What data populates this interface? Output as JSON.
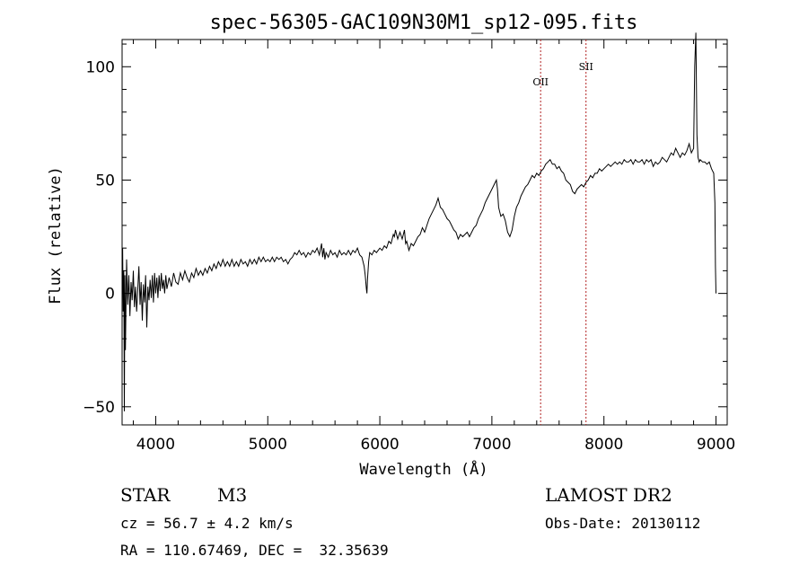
{
  "chart_data": {
    "type": "line",
    "title": "spec-56305-GAC109N30M1_sp12-095.fits",
    "xlabel": "Wavelength (Å)",
    "ylabel": "Flux (relative)",
    "xlim": [
      3700,
      9100
    ],
    "ylim": [
      -58,
      112
    ],
    "x_ticks": [
      4000,
      5000,
      6000,
      7000,
      8000,
      9000
    ],
    "y_ticks": [
      -50,
      0,
      50,
      100
    ],
    "grid": false,
    "reference_lines": [
      {
        "name": "OII",
        "x": 7435
      },
      {
        "name": "SII",
        "x": 7840
      }
    ],
    "series": [
      {
        "points": [
          [
            3700,
            5
          ],
          [
            3705,
            20
          ],
          [
            3710,
            -8
          ],
          [
            3715,
            10
          ],
          [
            3720,
            -52
          ],
          [
            3725,
            8
          ],
          [
            3730,
            -25
          ],
          [
            3740,
            15
          ],
          [
            3750,
            -5
          ],
          [
            3760,
            8
          ],
          [
            3770,
            -10
          ],
          [
            3780,
            5
          ],
          [
            3790,
            -3
          ],
          [
            3800,
            10
          ],
          [
            3810,
            -6
          ],
          [
            3820,
            3
          ],
          [
            3830,
            -8
          ],
          [
            3840,
            2
          ],
          [
            3850,
            12
          ],
          [
            3860,
            -5
          ],
          [
            3870,
            5
          ],
          [
            3880,
            -12
          ],
          [
            3890,
            4
          ],
          [
            3900,
            -4
          ],
          [
            3910,
            8
          ],
          [
            3920,
            -15
          ],
          [
            3930,
            3
          ],
          [
            3940,
            -3
          ],
          [
            3950,
            6
          ],
          [
            3960,
            -2
          ],
          [
            3970,
            8
          ],
          [
            3980,
            -4
          ],
          [
            3990,
            9
          ],
          [
            4000,
            0
          ],
          [
            4010,
            7
          ],
          [
            4020,
            -2
          ],
          [
            4030,
            8
          ],
          [
            4040,
            1
          ],
          [
            4050,
            9
          ],
          [
            4060,
            2
          ],
          [
            4070,
            6
          ],
          [
            4080,
            0
          ],
          [
            4090,
            8
          ],
          [
            4100,
            2
          ],
          [
            4120,
            7
          ],
          [
            4140,
            3
          ],
          [
            4160,
            9
          ],
          [
            4180,
            5
          ],
          [
            4200,
            4
          ],
          [
            4220,
            9
          ],
          [
            4240,
            6
          ],
          [
            4260,
            10
          ],
          [
            4280,
            7
          ],
          [
            4300,
            5
          ],
          [
            4320,
            9
          ],
          [
            4340,
            7
          ],
          [
            4360,
            11
          ],
          [
            4380,
            8
          ],
          [
            4400,
            10
          ],
          [
            4420,
            8
          ],
          [
            4440,
            11
          ],
          [
            4460,
            9
          ],
          [
            4480,
            12
          ],
          [
            4500,
            10
          ],
          [
            4520,
            13
          ],
          [
            4540,
            11
          ],
          [
            4560,
            14
          ],
          [
            4580,
            12
          ],
          [
            4600,
            15
          ],
          [
            4620,
            12
          ],
          [
            4640,
            14
          ],
          [
            4660,
            12
          ],
          [
            4680,
            15
          ],
          [
            4700,
            12
          ],
          [
            4720,
            14
          ],
          [
            4740,
            12
          ],
          [
            4760,
            15
          ],
          [
            4780,
            13
          ],
          [
            4800,
            14
          ],
          [
            4820,
            12
          ],
          [
            4840,
            15
          ],
          [
            4860,
            13
          ],
          [
            4880,
            15
          ],
          [
            4900,
            13
          ],
          [
            4920,
            16
          ],
          [
            4940,
            14
          ],
          [
            4960,
            16
          ],
          [
            4980,
            14
          ],
          [
            5000,
            15
          ],
          [
            5020,
            14
          ],
          [
            5040,
            16
          ],
          [
            5060,
            14
          ],
          [
            5080,
            16
          ],
          [
            5100,
            15
          ],
          [
            5120,
            16
          ],
          [
            5140,
            14
          ],
          [
            5160,
            15
          ],
          [
            5180,
            13
          ],
          [
            5200,
            15
          ],
          [
            5220,
            16
          ],
          [
            5240,
            18
          ],
          [
            5260,
            17
          ],
          [
            5280,
            19
          ],
          [
            5300,
            17
          ],
          [
            5320,
            18
          ],
          [
            5340,
            16
          ],
          [
            5360,
            18
          ],
          [
            5380,
            17
          ],
          [
            5400,
            19
          ],
          [
            5420,
            18
          ],
          [
            5440,
            20
          ],
          [
            5460,
            17
          ],
          [
            5480,
            22
          ],
          [
            5490,
            16
          ],
          [
            5500,
            20
          ],
          [
            5510,
            15
          ],
          [
            5520,
            18
          ],
          [
            5540,
            16
          ],
          [
            5560,
            19
          ],
          [
            5580,
            17
          ],
          [
            5600,
            18
          ],
          [
            5620,
            16
          ],
          [
            5640,
            19
          ],
          [
            5660,
            17
          ],
          [
            5680,
            18
          ],
          [
            5700,
            17
          ],
          [
            5720,
            19
          ],
          [
            5740,
            17
          ],
          [
            5760,
            19
          ],
          [
            5780,
            18
          ],
          [
            5800,
            20
          ],
          [
            5820,
            17
          ],
          [
            5840,
            16
          ],
          [
            5860,
            12
          ],
          [
            5870,
            8
          ],
          [
            5880,
            2
          ],
          [
            5885,
            0
          ],
          [
            5890,
            6
          ],
          [
            5900,
            14
          ],
          [
            5910,
            18
          ],
          [
            5930,
            17
          ],
          [
            5950,
            19
          ],
          [
            5970,
            18
          ],
          [
            6000,
            20
          ],
          [
            6020,
            19
          ],
          [
            6040,
            21
          ],
          [
            6060,
            20
          ],
          [
            6080,
            23
          ],
          [
            6100,
            22
          ],
          [
            6120,
            26
          ],
          [
            6130,
            25
          ],
          [
            6140,
            28
          ],
          [
            6160,
            24
          ],
          [
            6180,
            27
          ],
          [
            6200,
            24
          ],
          [
            6220,
            28
          ],
          [
            6230,
            22
          ],
          [
            6240,
            23
          ],
          [
            6260,
            19
          ],
          [
            6280,
            22
          ],
          [
            6300,
            21
          ],
          [
            6320,
            23
          ],
          [
            6340,
            25
          ],
          [
            6360,
            26
          ],
          [
            6380,
            29
          ],
          [
            6400,
            27
          ],
          [
            6420,
            30
          ],
          [
            6440,
            33
          ],
          [
            6460,
            35
          ],
          [
            6480,
            37
          ],
          [
            6500,
            39
          ],
          [
            6520,
            42
          ],
          [
            6540,
            38
          ],
          [
            6560,
            37
          ],
          [
            6580,
            35
          ],
          [
            6600,
            33
          ],
          [
            6620,
            32
          ],
          [
            6640,
            30
          ],
          [
            6660,
            28
          ],
          [
            6680,
            27
          ],
          [
            6700,
            24
          ],
          [
            6720,
            26
          ],
          [
            6740,
            25
          ],
          [
            6760,
            26
          ],
          [
            6780,
            27
          ],
          [
            6800,
            25
          ],
          [
            6820,
            27
          ],
          [
            6840,
            29
          ],
          [
            6860,
            30
          ],
          [
            6880,
            33
          ],
          [
            6900,
            35
          ],
          [
            6920,
            37
          ],
          [
            6940,
            40
          ],
          [
            6960,
            42
          ],
          [
            6980,
            44
          ],
          [
            7000,
            46
          ],
          [
            7020,
            48
          ],
          [
            7040,
            50
          ],
          [
            7050,
            46
          ],
          [
            7060,
            38
          ],
          [
            7070,
            36
          ],
          [
            7080,
            34
          ],
          [
            7100,
            35
          ],
          [
            7120,
            32
          ],
          [
            7140,
            27
          ],
          [
            7160,
            25
          ],
          [
            7180,
            28
          ],
          [
            7200,
            34
          ],
          [
            7220,
            38
          ],
          [
            7240,
            40
          ],
          [
            7260,
            43
          ],
          [
            7280,
            45
          ],
          [
            7300,
            47
          ],
          [
            7320,
            48
          ],
          [
            7340,
            50
          ],
          [
            7360,
            52
          ],
          [
            7380,
            51
          ],
          [
            7400,
            53
          ],
          [
            7420,
            52
          ],
          [
            7440,
            54
          ],
          [
            7460,
            55
          ],
          [
            7480,
            57
          ],
          [
            7500,
            58
          ],
          [
            7520,
            59
          ],
          [
            7540,
            57
          ],
          [
            7560,
            57
          ],
          [
            7580,
            55
          ],
          [
            7600,
            56
          ],
          [
            7620,
            54
          ],
          [
            7640,
            53
          ],
          [
            7660,
            50
          ],
          [
            7680,
            49
          ],
          [
            7700,
            48
          ],
          [
            7720,
            45
          ],
          [
            7740,
            44
          ],
          [
            7760,
            46
          ],
          [
            7780,
            47
          ],
          [
            7800,
            48
          ],
          [
            7820,
            47
          ],
          [
            7840,
            49
          ],
          [
            7860,
            50
          ],
          [
            7880,
            52
          ],
          [
            7900,
            51
          ],
          [
            7920,
            53
          ],
          [
            7940,
            53
          ],
          [
            7960,
            55
          ],
          [
            7980,
            54
          ],
          [
            8000,
            55
          ],
          [
            8020,
            56
          ],
          [
            8040,
            57
          ],
          [
            8060,
            56
          ],
          [
            8080,
            57
          ],
          [
            8100,
            58
          ],
          [
            8120,
            57
          ],
          [
            8140,
            58
          ],
          [
            8160,
            57
          ],
          [
            8180,
            59
          ],
          [
            8200,
            58
          ],
          [
            8220,
            58
          ],
          [
            8240,
            59
          ],
          [
            8260,
            57
          ],
          [
            8280,
            59
          ],
          [
            8300,
            58
          ],
          [
            8320,
            58
          ],
          [
            8340,
            59
          ],
          [
            8360,
            57
          ],
          [
            8380,
            59
          ],
          [
            8400,
            58
          ],
          [
            8420,
            59
          ],
          [
            8440,
            56
          ],
          [
            8460,
            58
          ],
          [
            8480,
            57
          ],
          [
            8500,
            58
          ],
          [
            8520,
            60
          ],
          [
            8540,
            59
          ],
          [
            8560,
            58
          ],
          [
            8580,
            60
          ],
          [
            8600,
            62
          ],
          [
            8620,
            61
          ],
          [
            8640,
            64
          ],
          [
            8660,
            62
          ],
          [
            8680,
            60
          ],
          [
            8700,
            62
          ],
          [
            8720,
            61
          ],
          [
            8740,
            63
          ],
          [
            8760,
            66
          ],
          [
            8780,
            62
          ],
          [
            8800,
            64
          ],
          [
            8810,
            100
          ],
          [
            8820,
            115
          ],
          [
            8830,
            70
          ],
          [
            8840,
            60
          ],
          [
            8850,
            58
          ],
          [
            8860,
            59
          ],
          [
            8880,
            58
          ],
          [
            8900,
            58
          ],
          [
            8920,
            57
          ],
          [
            8940,
            58
          ],
          [
            8960,
            55
          ],
          [
            8980,
            53
          ],
          [
            8990,
            40
          ],
          [
            8995,
            12
          ],
          [
            9000,
            0
          ]
        ]
      }
    ]
  },
  "info": {
    "object_class": "STAR",
    "subclass": "M3",
    "survey": "LAMOST DR2",
    "redshift": "cz = 56.7 ± 4.2 km/s",
    "obs_date": "Obs-Date: 20130112",
    "coords": "RA = 110.67469, DEC =  32.35639"
  }
}
